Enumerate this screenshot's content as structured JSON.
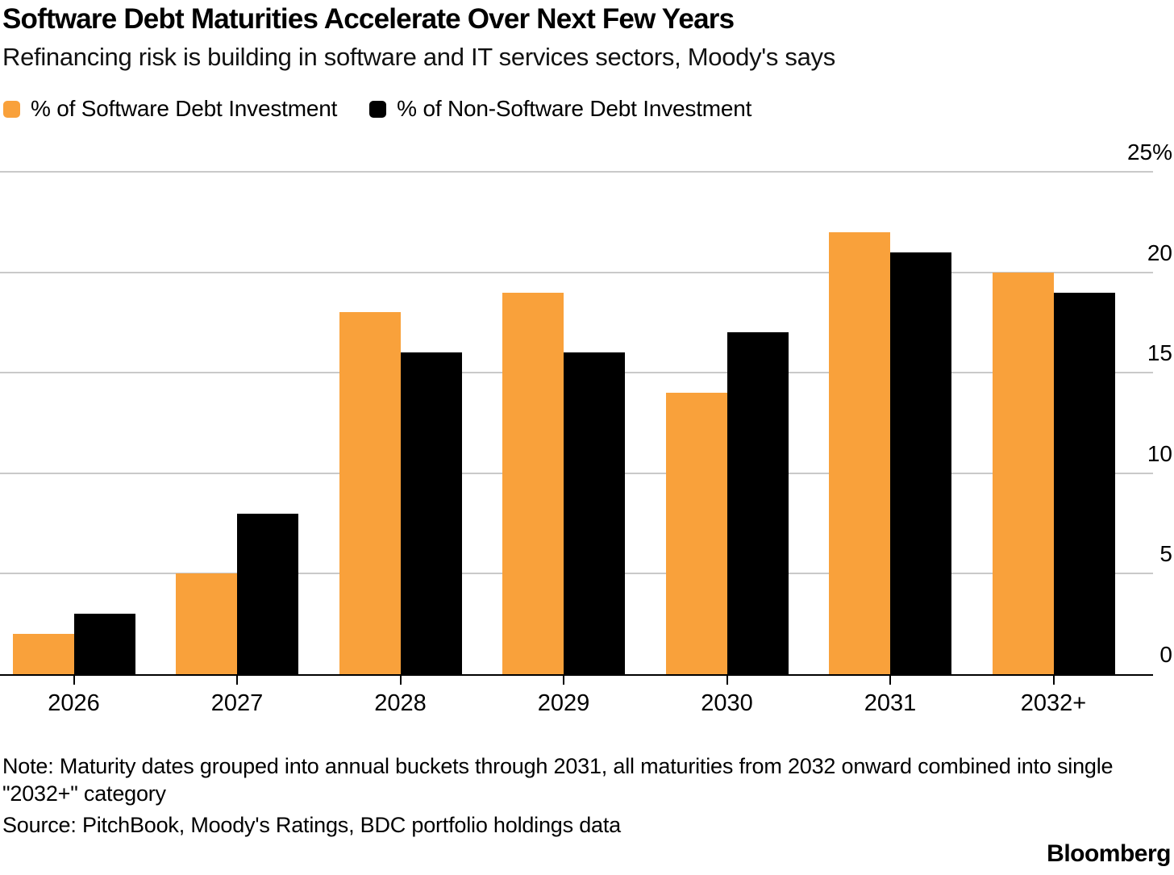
{
  "header": {
    "title": "Software Debt Maturities Accelerate Over Next Few Years",
    "subtitle": "Refinancing risk is building in software and IT services sectors, Moody's says"
  },
  "legend": [
    {
      "label": "% of Software Debt Investment",
      "color": "#F9A13B"
    },
    {
      "label": "% of Non-Software Debt Investment",
      "color": "#000000"
    }
  ],
  "chart_data": {
    "type": "bar",
    "categories": [
      "2026",
      "2027",
      "2028",
      "2029",
      "2030",
      "2031",
      "2032+"
    ],
    "series": [
      {
        "name": "% of Software Debt Investment",
        "color": "#F9A13B",
        "values": [
          2,
          5,
          18,
          19,
          14,
          22,
          20
        ]
      },
      {
        "name": "% of Non-Software Debt Investment",
        "color": "#000000",
        "values": [
          3,
          8,
          16,
          16,
          17,
          21,
          19
        ]
      }
    ],
    "title": "Software Debt Maturities Accelerate Over Next Few Years",
    "xlabel": "",
    "ylabel": "",
    "ylim": [
      0,
      25
    ],
    "yticks": [
      0,
      5,
      10,
      15,
      20,
      25
    ],
    "ytick_labels": [
      "0",
      "5",
      "10",
      "15",
      "20",
      "25%"
    ],
    "grid": true,
    "legend_position": "top",
    "gridline_color": "#c9c9c9"
  },
  "footer": {
    "note": "Note: Maturity dates grouped into annual buckets through 2031, all maturities from 2032 onward combined into single \"2032+\" category",
    "source": "Source: PitchBook, Moody's Ratings, BDC portfolio holdings data",
    "brand": "Bloomberg"
  }
}
